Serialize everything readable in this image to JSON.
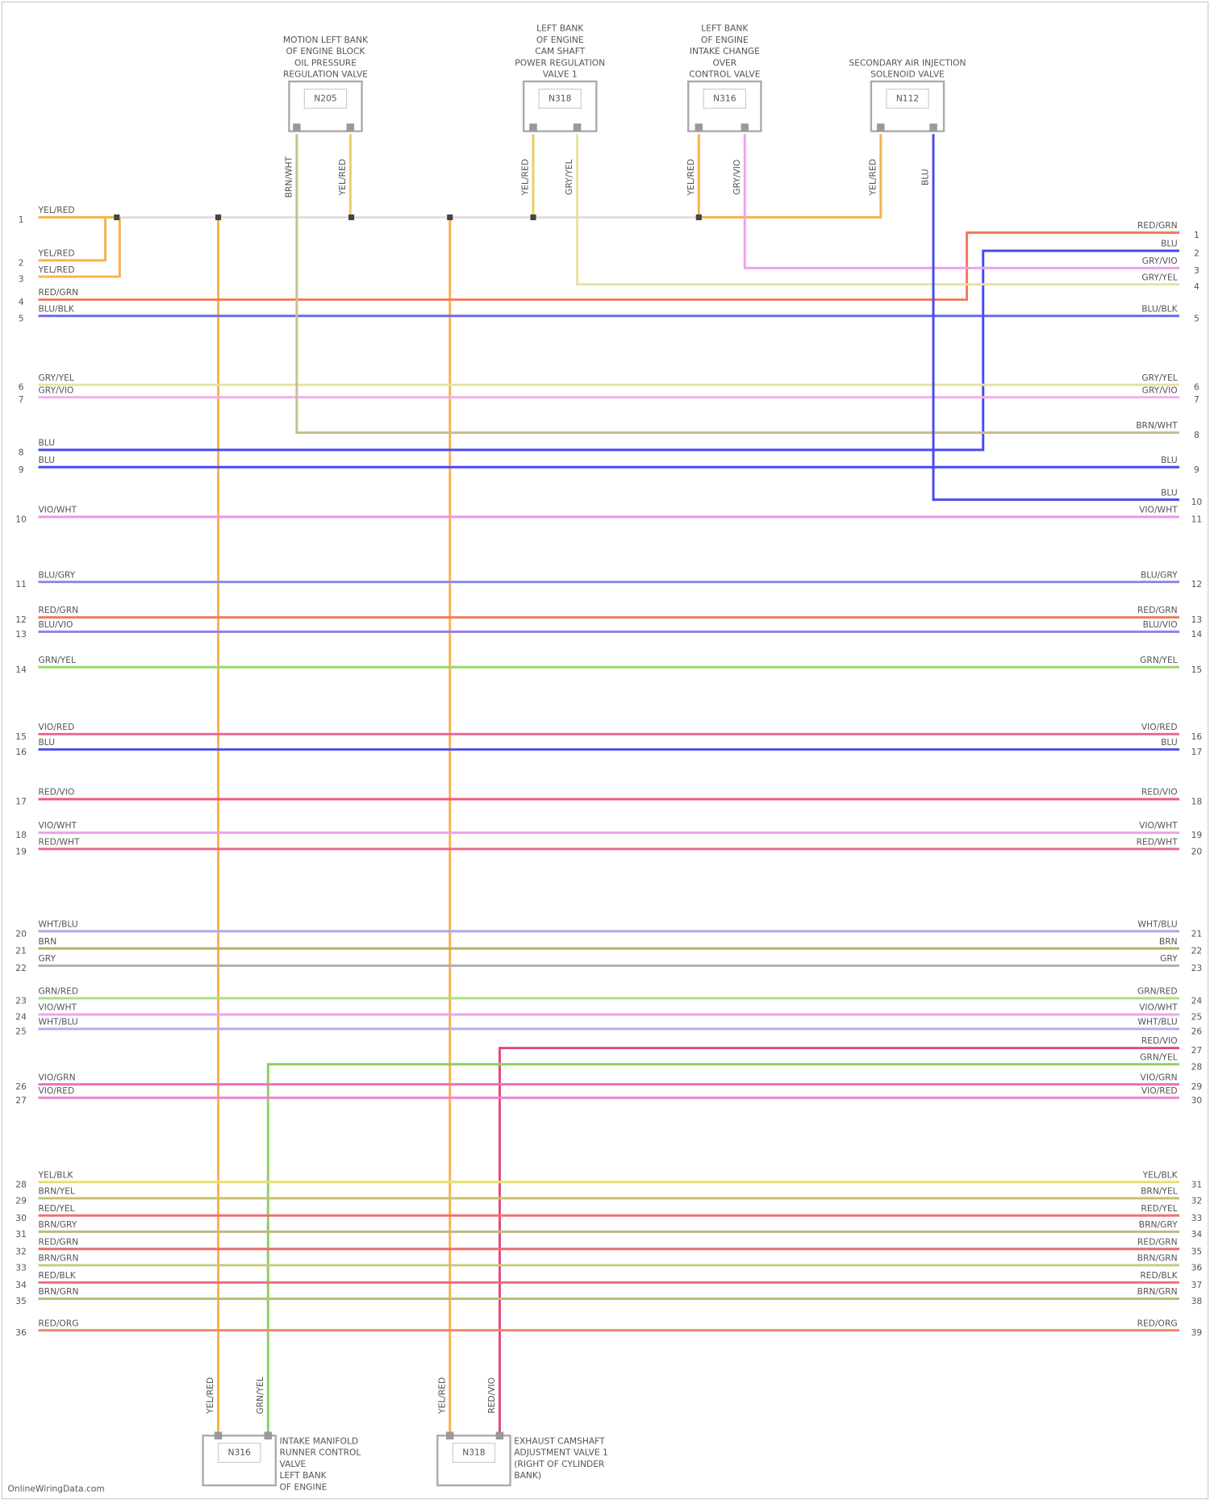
{
  "components": [
    {
      "title": [
        "MOTION LEFT BANK",
        "OF ENGINE BLOCK",
        "OIL PRESSURE",
        "REGULATION VALVE"
      ],
      "code": "N205",
      "pins": [
        "BRN/WHT",
        "YEL/RED"
      ]
    },
    {
      "title": [
        "LEFT BANK",
        "OF ENGINE",
        "CAM SHAFT",
        "POWER REGULATION",
        "VALVE 1"
      ],
      "code": "N318",
      "pins": [
        "YEL/RED",
        "GRY/YEL"
      ]
    },
    {
      "title": [
        "LEFT BANK",
        "OF ENGINE",
        "INTAKE CHANGE",
        "OVER",
        "CONTROL VALVE"
      ],
      "code": "N316",
      "pins": [
        "YEL/RED",
        "GRY/VIO"
      ]
    },
    {
      "title": [
        "SECONDARY AIR INJECTION",
        "SOLENOID VALVE"
      ],
      "code": "N112",
      "pins": [
        "YEL/RED",
        "BLU"
      ]
    },
    {
      "title": [
        "INTAKE MANIFOLD",
        "RUNNER CONTROL",
        "VALVE",
        "LEFT BANK",
        "OF ENGINE"
      ],
      "code": "N316",
      "pins": [
        "YEL/RED",
        "GRN/YEL"
      ]
    },
    {
      "title": [
        "EXHAUST CAMSHAFT",
        "ADJUSTMENT VALVE 1",
        "(RIGHT OF CYLINDER",
        "BANK)"
      ],
      "code": "N318",
      "pins": [
        "YEL/RED",
        "RED/VIO"
      ]
    }
  ],
  "wires": [
    {
      "lp": "1",
      "ll": "YEL/RED",
      "color": "#f7b24e"
    },
    {
      "lp": "2",
      "ll": "YEL/RED",
      "color": "#f7b24e"
    },
    {
      "lp": "3",
      "ll": "YEL/RED",
      "color": "#f7b24e"
    },
    {
      "lp": "4",
      "ll": "RED/GRN",
      "rp": "1",
      "rl": "RED/GRN",
      "color": "#f07a5a"
    },
    {
      "lp": "5",
      "ll": "BLU/BLK",
      "rp": "5",
      "rl": "BLU/BLK",
      "color": "#6a6ae8"
    },
    {
      "lp": "8",
      "ll": "BLU",
      "rp": "2",
      "rl": "BLU",
      "color": "#4a4af0"
    },
    {
      "rp": "3",
      "rl": "GRY/VIO",
      "color": "#f0a0f0"
    },
    {
      "rp": "4",
      "rl": "GRY/YEL",
      "color": "#e6e2a0"
    },
    {
      "lp": "6",
      "ll": "GRY/YEL",
      "rp": "6",
      "rl": "GRY/YEL",
      "color": "#e6e2a0"
    },
    {
      "lp": "7",
      "ll": "GRY/VIO",
      "rp": "7",
      "rl": "GRY/VIO",
      "color": "#f0b0f0"
    },
    {
      "rp": "8",
      "rl": "BRN/WHT",
      "color": "#c8c090"
    },
    {
      "lp": "9",
      "ll": "BLU",
      "rp": "9",
      "rl": "BLU",
      "color": "#4a4af0"
    },
    {
      "rp": "10",
      "rl": "BLU",
      "color": "#4a4af0"
    },
    {
      "lp": "10",
      "ll": "VIO/WHT",
      "rp": "11",
      "rl": "VIO/WHT",
      "color": "#f090e8"
    },
    {
      "lp": "11",
      "ll": "BLU/GRY",
      "rp": "12",
      "rl": "BLU/GRY",
      "color": "#8a8ae8"
    },
    {
      "lp": "12",
      "ll": "RED/GRN",
      "rp": "13",
      "rl": "RED/GRN",
      "color": "#f07a5a"
    },
    {
      "lp": "13",
      "ll": "BLU/VIO",
      "rp": "14",
      "rl": "BLU/VIO",
      "color": "#9a7af0"
    },
    {
      "lp": "14",
      "ll": "GRN/YEL",
      "rp": "15",
      "rl": "GRN/YEL",
      "color": "#9ad86a"
    },
    {
      "lp": "15",
      "ll": "VIO/RED",
      "rp": "16",
      "rl": "VIO/RED",
      "color": "#f0609a"
    },
    {
      "lp": "16",
      "ll": "BLU",
      "rp": "17",
      "rl": "BLU",
      "color": "#4a4af0"
    },
    {
      "lp": "17",
      "ll": "RED/VIO",
      "rp": "18",
      "rl": "RED/VIO",
      "color": "#f05a7a"
    },
    {
      "lp": "18",
      "ll": "VIO/WHT",
      "rp": "19",
      "rl": "VIO/WHT",
      "color": "#f0a0e8"
    },
    {
      "lp": "19",
      "ll": "RED/WHT",
      "rp": "20",
      "rl": "RED/WHT",
      "color": "#f06a8a"
    },
    {
      "lp": "20",
      "ll": "WHT/BLU",
      "rp": "21",
      "rl": "WHT/BLU",
      "color": "#a8a8f0"
    },
    {
      "lp": "21",
      "ll": "BRN",
      "rp": "22",
      "rl": "BRN",
      "color": "#b8b060"
    },
    {
      "lp": "22",
      "ll": "GRY",
      "rp": "23",
      "rl": "GRY",
      "color": "#b0b0b0"
    },
    {
      "lp": "23",
      "ll": "GRN/RED",
      "rp": "24",
      "rl": "GRN/RED",
      "color": "#a8e080"
    },
    {
      "lp": "24",
      "ll": "VIO/WHT",
      "rp": "25",
      "rl": "VIO/WHT",
      "color": "#f0a0f0"
    },
    {
      "lp": "25",
      "ll": "WHT/BLU",
      "rp": "26",
      "rl": "WHT/BLU",
      "color": "#b0b0f0"
    },
    {
      "rp": "27",
      "rl": "RED/VIO",
      "color": "#e04a7a"
    },
    {
      "rp": "28",
      "rl": "GRN/YEL",
      "color": "#8ad060"
    },
    {
      "lp": "26",
      "ll": "VIO/GRN",
      "rp": "29",
      "rl": "VIO/GRN",
      "color": "#f070c0"
    },
    {
      "lp": "27",
      "ll": "VIO/RED",
      "rp": "30",
      "rl": "VIO/RED",
      "color": "#f080d0"
    },
    {
      "lp": "28",
      "ll": "YEL/BLK",
      "rp": "31",
      "rl": "YEL/BLK",
      "color": "#e8e070"
    },
    {
      "lp": "29",
      "ll": "BRN/YEL",
      "rp": "32",
      "rl": "BRN/YEL",
      "color": "#c8c070"
    },
    {
      "lp": "30",
      "ll": "RED/YEL",
      "rp": "33",
      "rl": "RED/YEL",
      "color": "#f07070"
    },
    {
      "lp": "31",
      "ll": "BRN/GRY",
      "rp": "34",
      "rl": "BRN/GRY",
      "color": "#c0b880"
    },
    {
      "lp": "32",
      "ll": "RED/GRN",
      "rp": "35",
      "rl": "RED/GRN",
      "color": "#f06a6a"
    },
    {
      "lp": "33",
      "ll": "BRN/GRN",
      "rp": "36",
      "rl": "BRN/GRN",
      "color": "#c8c880"
    },
    {
      "lp": "34",
      "ll": "RED/BLK",
      "rp": "37",
      "rl": "RED/BLK",
      "color": "#f06a7a"
    },
    {
      "lp": "35",
      "ll": "BRN/GRN",
      "rp": "38",
      "rl": "BRN/GRN",
      "color": "#b8c070"
    },
    {
      "lp": "36",
      "ll": "RED/ORG",
      "rp": "39",
      "rl": "RED/ORG",
      "color": "#f08a6a"
    }
  ],
  "footer": "OnlineWiringData.com"
}
